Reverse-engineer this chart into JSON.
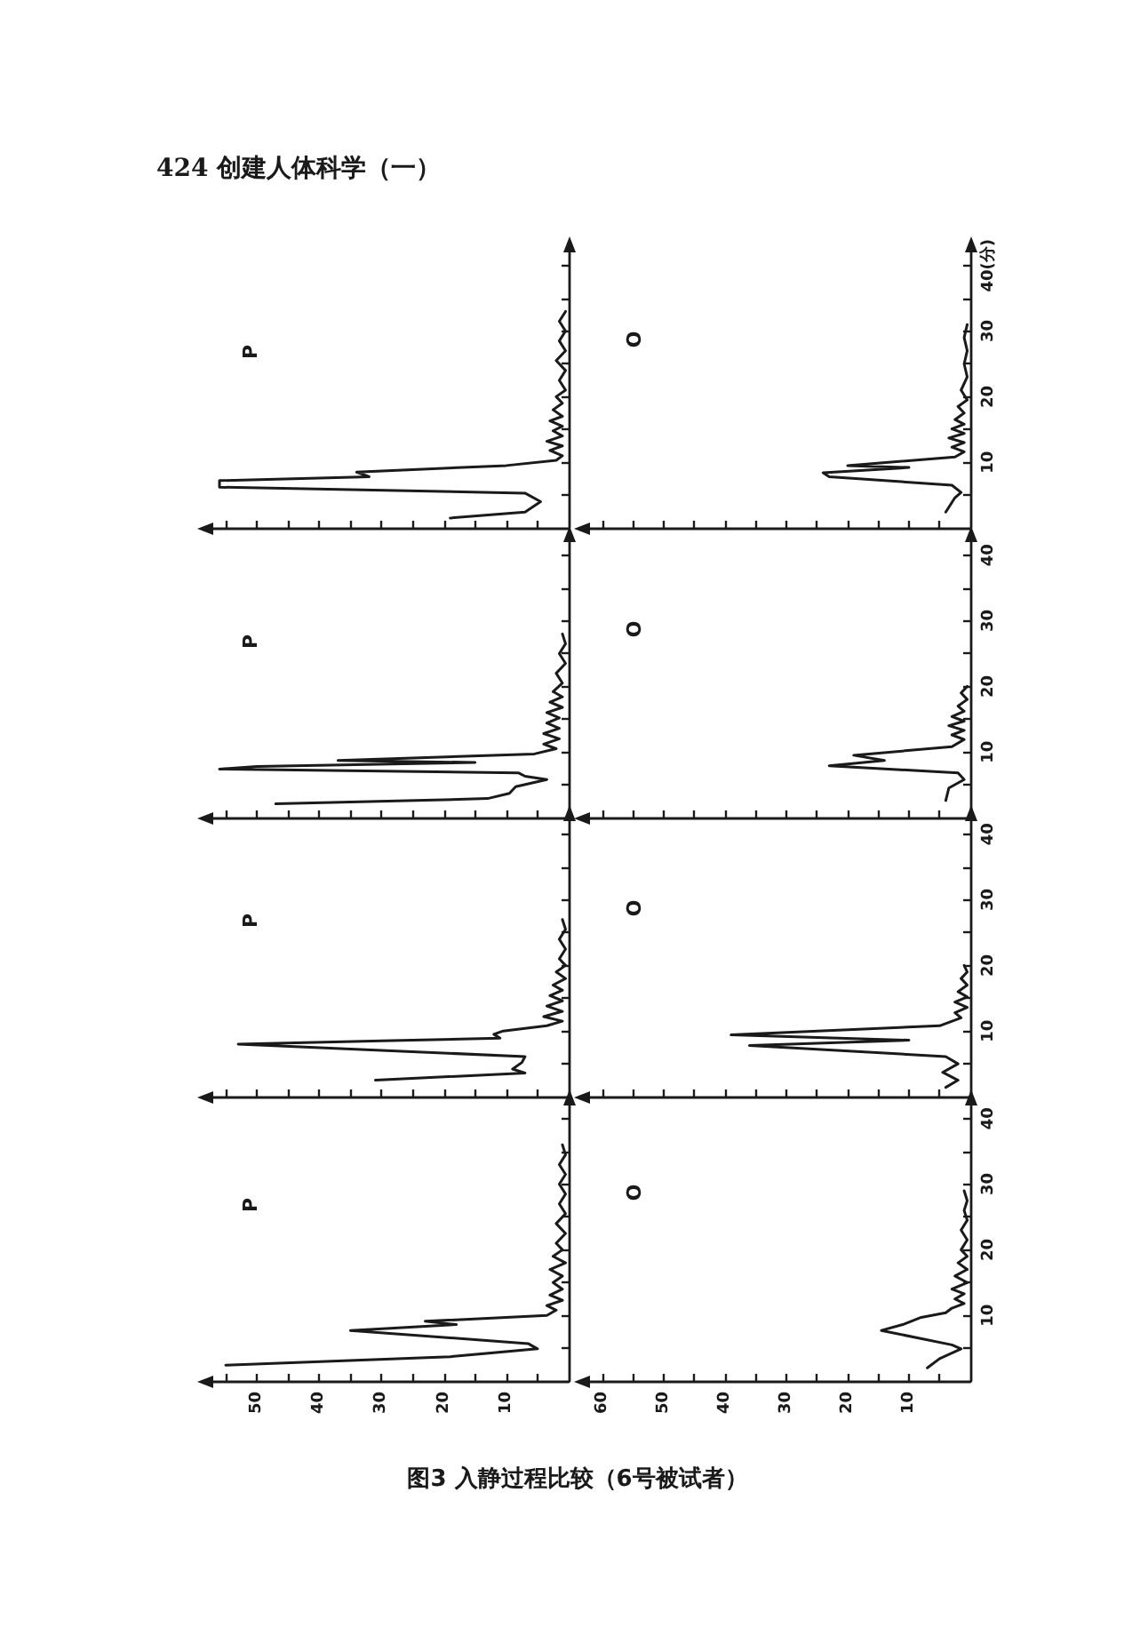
{
  "chart_data": [
    {
      "type": "line",
      "title": "P",
      "annotations": [
        "424 创建人体科学（一）"
      ],
      "color": "#1a1a1a",
      "x": [
        19,
        7,
        4.5,
        7,
        56,
        56,
        32,
        34,
        10,
        2,
        1,
        3,
        1,
        3.5,
        1,
        2.5,
        1,
        3,
        1,
        2.5,
        1,
        2,
        0.5,
        1.5,
        0.5,
        2,
        0.5,
        1.5,
        0.5,
        1.5,
        0.5
      ],
      "values": [
        1.5,
        2.4,
        4.0,
        5.3,
        6.2,
        7.2,
        7.8,
        8.5,
        9.5,
        10.3,
        11.0,
        11.8,
        12.5,
        13.2,
        14.0,
        14.8,
        15.5,
        16.3,
        17.0,
        18.0,
        19.0,
        20.0,
        21.0,
        22.5,
        24.0,
        25.5,
        27.0,
        28.5,
        30.0,
        31.5,
        33.0
      ],
      "xlim": [
        57,
        0
      ],
      "xticks": [
        {
          "value": 55,
          "label": null
        },
        50,
        {
          "value": 45,
          "label": null
        },
        40,
        {
          "value": 35,
          "label": null
        },
        30,
        {
          "value": 25,
          "label": null
        },
        20,
        {
          "value": 15,
          "label": null
        },
        10,
        {
          "value": 5,
          "label": null
        }
      ],
      "ylim": [
        0,
        42
      ],
      "yticks": [
        {
          "value": 5,
          "label": null
        },
        10,
        {
          "value": 15,
          "label": null
        },
        20,
        {
          "value": 25,
          "label": null
        },
        30,
        {
          "value": 35,
          "label": null
        },
        40
      ],
      "tick_labels": false
    },
    {
      "type": "line",
      "title": "O",
      "color": "#1a1a1a",
      "x": [
        4,
        2.5,
        1.5,
        3,
        23,
        24,
        10,
        20,
        2.5,
        1,
        3,
        1,
        3.5,
        1,
        3,
        1,
        2.5,
        1,
        2,
        0.5,
        1.5,
        0.5,
        1,
        0.5,
        1,
        0.5
      ],
      "values": [
        2.4,
        4.6,
        5.4,
        6.5,
        7.8,
        8.4,
        9.2,
        9.5,
        10.8,
        11.6,
        12.3,
        13.0,
        13.7,
        14.4,
        15.1,
        15.8,
        16.5,
        17.5,
        18.5,
        19.5,
        21.0,
        23.0,
        25.0,
        27.0,
        29.0,
        31.0
      ],
      "xlim": [
        62,
        0
      ],
      "xticks": [
        60,
        {
          "value": 55,
          "label": null
        },
        50,
        {
          "value": 45,
          "label": null
        },
        40,
        {
          "value": 35,
          "label": null
        },
        30,
        {
          "value": 25,
          "label": null
        },
        20,
        {
          "value": 15,
          "label": null
        },
        10,
        {
          "value": 5,
          "label": null
        }
      ],
      "ylim": [
        0,
        42
      ],
      "yticks": [
        {
          "value": 5,
          "label": null
        },
        10,
        {
          "value": 15,
          "label": null
        },
        20,
        {
          "value": 25,
          "label": null
        },
        30,
        {
          "value": 35,
          "label": null
        },
        {
          "value": 40,
          "label": "40(分)"
        }
      ],
      "tick_labels": "y"
    },
    {
      "type": "line",
      "title": "P",
      "color": "#1a1a1a",
      "x": [
        47,
        20,
        13,
        9.5,
        8.5,
        3.5,
        7,
        8,
        56,
        50,
        15,
        37,
        5.5,
        2,
        4,
        1.5,
        4,
        1.5,
        3.5,
        1.5,
        3.5,
        1,
        3,
        1,
        2.5,
        1,
        2,
        0.5,
        1.5,
        0.5,
        1
      ],
      "values": [
        2.1,
        2.7,
        2.9,
        3.7,
        4.7,
        5.8,
        6.3,
        6.8,
        7.4,
        7.8,
        8.4,
        8.7,
        9.7,
        10.5,
        11.2,
        12.0,
        12.8,
        13.6,
        14.4,
        15.2,
        16.0,
        16.8,
        17.6,
        18.4,
        19.2,
        20.5,
        22.0,
        23.5,
        25.0,
        26.5,
        28.0
      ],
      "xlim": [
        57,
        0
      ],
      "xticks": [
        {
          "value": 55,
          "label": null
        },
        50,
        {
          "value": 45,
          "label": null
        },
        40,
        {
          "value": 35,
          "label": null
        },
        30,
        {
          "value": 25,
          "label": null
        },
        20,
        {
          "value": 15,
          "label": null
        },
        10,
        {
          "value": 5,
          "label": null
        }
      ],
      "ylim": [
        0,
        42
      ],
      "yticks": [
        {
          "value": 5,
          "label": null
        },
        10,
        {
          "value": 15,
          "label": null
        },
        20,
        {
          "value": 25,
          "label": null
        },
        30,
        {
          "value": 35,
          "label": null
        },
        40
      ],
      "tick_labels": false
    },
    {
      "type": "line",
      "title": "O",
      "color": "#1a1a1a",
      "x": [
        4,
        3.5,
        1,
        2,
        23,
        14,
        19,
        3,
        1,
        3,
        1,
        3.5,
        1,
        3,
        1,
        2,
        0.5,
        1.5,
        0.5
      ],
      "values": [
        2.6,
        4.5,
        5.8,
        6.8,
        7.9,
        8.7,
        9.5,
        10.8,
        11.9,
        12.6,
        13.3,
        14.0,
        14.7,
        15.4,
        16.2,
        17.0,
        18.0,
        19.0,
        20.0
      ],
      "xlim": [
        62,
        0
      ],
      "xticks": [
        60,
        {
          "value": 55,
          "label": null
        },
        50,
        {
          "value": 45,
          "label": null
        },
        40,
        {
          "value": 35,
          "label": null
        },
        30,
        {
          "value": 25,
          "label": null
        },
        20,
        {
          "value": 15,
          "label": null
        },
        10,
        {
          "value": 5,
          "label": null
        }
      ],
      "ylim": [
        0,
        42
      ],
      "yticks": [
        {
          "value": 5,
          "label": null
        },
        10,
        {
          "value": 15,
          "label": null
        },
        20,
        {
          "value": 25,
          "label": null
        },
        30,
        {
          "value": 35,
          "label": null
        },
        40
      ],
      "tick_labels": "y"
    },
    {
      "type": "line",
      "title": "P",
      "color": "#1a1a1a",
      "x": [
        31,
        7,
        9,
        7.5,
        7,
        53,
        30,
        11,
        12,
        10.5,
        3.5,
        1,
        4,
        1,
        3.5,
        1,
        3,
        1,
        2.5,
        0.5,
        2,
        0.5,
        1.5,
        0.5,
        1.5,
        0.5,
        1
      ],
      "values": [
        2.5,
        3.6,
        4.2,
        5.2,
        6.1,
        8.0,
        8.5,
        8.9,
        9.5,
        10.0,
        10.8,
        11.5,
        12.2,
        13.0,
        13.8,
        14.6,
        15.4,
        16.2,
        17.0,
        18.0,
        19.0,
        20.0,
        21.0,
        22.5,
        24.0,
        25.5,
        27.0
      ],
      "xlim": [
        57,
        0
      ],
      "xticks": [
        {
          "value": 55,
          "label": null
        },
        50,
        {
          "value": 45,
          "label": null
        },
        40,
        {
          "value": 35,
          "label": null
        },
        30,
        {
          "value": 25,
          "label": null
        },
        20,
        {
          "value": 15,
          "label": null
        },
        10,
        {
          "value": 5,
          "label": null
        }
      ],
      "ylim": [
        0,
        42
      ],
      "yticks": [
        {
          "value": 5,
          "label": null
        },
        10,
        {
          "value": 15,
          "label": null
        },
        20,
        {
          "value": 25,
          "label": null
        },
        30,
        {
          "value": 35,
          "label": null
        },
        40
      ],
      "tick_labels": false
    },
    {
      "type": "line",
      "title": "O",
      "color": "#1a1a1a",
      "x": [
        4,
        2,
        4.5,
        2,
        4,
        36,
        10,
        39,
        5,
        1.5,
        2.5,
        0.5,
        2.5,
        0.5,
        2,
        0.5,
        1.5,
        0.5,
        1
      ],
      "values": [
        1.4,
        2.5,
        3.7,
        5.0,
        6.1,
        7.8,
        8.6,
        9.4,
        10.8,
        12.0,
        12.8,
        13.6,
        14.4,
        15.2,
        16.0,
        17.0,
        18.0,
        19.0,
        20.0
      ],
      "xlim": [
        62,
        0
      ],
      "xticks": [
        60,
        {
          "value": 55,
          "label": null
        },
        50,
        {
          "value": 45,
          "label": null
        },
        40,
        {
          "value": 35,
          "label": null
        },
        30,
        {
          "value": 25,
          "label": null
        },
        20,
        {
          "value": 15,
          "label": null
        },
        10,
        {
          "value": 5,
          "label": null
        }
      ],
      "ylim": [
        0,
        42
      ],
      "yticks": [
        {
          "value": 5,
          "label": null
        },
        10,
        {
          "value": 15,
          "label": null
        },
        20,
        {
          "value": 25,
          "label": null
        },
        30,
        {
          "value": 35,
          "label": null
        },
        40
      ],
      "tick_labels": "y"
    },
    {
      "type": "line",
      "title": "P",
      "color": "#1a1a1a",
      "x": [
        55,
        19,
        5,
        6.5,
        35,
        18,
        23,
        3.5,
        2,
        3.5,
        1,
        3,
        1,
        2.5,
        1,
        3,
        0.5,
        2.5,
        1,
        2,
        0.5,
        2,
        0.5,
        1.5,
        0.5,
        1.5,
        0.5,
        1.5,
        0.5,
        1
      ],
      "values": [
        2.4,
        3.7,
        4.9,
        5.7,
        7.7,
        8.6,
        9.1,
        10.0,
        10.8,
        11.5,
        12.3,
        13.1,
        14.0,
        15.0,
        16.0,
        17.0,
        18.0,
        19.0,
        20.0,
        21.0,
        22.5,
        24.0,
        25.5,
        27.0,
        28.5,
        30.0,
        31.5,
        33.0,
        34.5,
        36.0
      ],
      "xlim": [
        57,
        0
      ],
      "xticks": [
        {
          "value": 55,
          "label": null
        },
        50,
        {
          "value": 45,
          "label": null
        },
        40,
        {
          "value": 35,
          "label": null
        },
        30,
        {
          "value": 25,
          "label": null
        },
        20,
        {
          "value": 15,
          "label": null
        },
        10,
        {
          "value": 5,
          "label": null
        }
      ],
      "ylim": [
        0,
        42
      ],
      "yticks": [
        {
          "value": 5,
          "label": null
        },
        10,
        {
          "value": 15,
          "label": null
        },
        20,
        {
          "value": 25,
          "label": null
        },
        30,
        {
          "value": 35,
          "label": null
        },
        40
      ],
      "tick_labels": "x"
    },
    {
      "type": "line",
      "title": "O",
      "annotations": [
        "图3 入静过程比较（6号被试者）"
      ],
      "color": "#1a1a1a",
      "x": [
        7,
        5,
        1.5,
        3,
        14.5,
        11,
        8,
        4,
        3,
        1,
        2.5,
        1,
        3,
        0.5,
        2.5,
        0.5,
        2,
        0.5,
        1.5,
        0.5,
        1.5,
        0.5,
        1,
        0.5,
        1
      ],
      "values": [
        2.0,
        3.4,
        4.9,
        5.5,
        7.7,
        8.6,
        9.7,
        10.4,
        11.1,
        11.8,
        12.5,
        13.3,
        14.0,
        15.0,
        16.0,
        17.0,
        18.0,
        19.0,
        20.0,
        21.5,
        23.0,
        24.5,
        26.0,
        27.5,
        29.0
      ],
      "xlim": [
        62,
        0
      ],
      "xticks": [
        60,
        {
          "value": 55,
          "label": null
        },
        50,
        {
          "value": 45,
          "label": null
        },
        40,
        {
          "value": 35,
          "label": null
        },
        30,
        {
          "value": 25,
          "label": null
        },
        20,
        {
          "value": 15,
          "label": null
        },
        10,
        {
          "value": 5,
          "label": null
        }
      ],
      "ylim": [
        0,
        42
      ],
      "yticks": [
        {
          "value": 5,
          "label": null
        },
        10,
        {
          "value": 15,
          "label": null
        },
        20,
        {
          "value": 25,
          "label": null
        },
        30,
        {
          "value": 35,
          "label": null
        },
        40
      ]
    }
  ]
}
